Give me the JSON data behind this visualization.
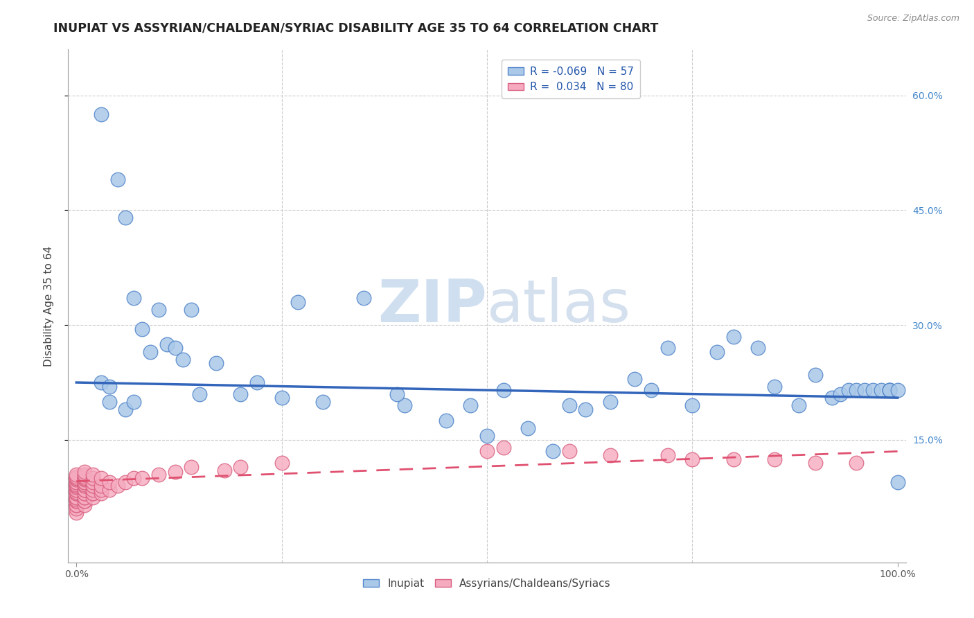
{
  "title": "INUPIAT VS ASSYRIAN/CHALDEAN/SYRIAC DISABILITY AGE 35 TO 64 CORRELATION CHART",
  "source": "Source: ZipAtlas.com",
  "ylabel": "Disability Age 35 to 64",
  "xlim": [
    -0.01,
    1.01
  ],
  "ylim": [
    -0.01,
    0.66
  ],
  "ytick_positions": [
    0.15,
    0.3,
    0.45,
    0.6
  ],
  "ytick_labels": [
    "15.0%",
    "30.0%",
    "45.0%",
    "60.0%"
  ],
  "legend_R1": "-0.069",
  "legend_N1": "57",
  "legend_R2": "0.034",
  "legend_N2": "80",
  "inupiat_color": "#aac8e8",
  "assyrian_color": "#f5aabf",
  "inupiat_edge": "#5588cc",
  "assyrian_edge": "#d96080",
  "trend_blue": "#3366bb",
  "trend_pink": "#e05070",
  "watermark_color": "#d0dff0",
  "title_fontsize": 12.5,
  "axis_label_fontsize": 11,
  "tick_fontsize": 10,
  "inupiat_x": [
    0.03,
    0.05,
    0.06,
    0.07,
    0.08,
    0.09,
    0.1,
    0.11,
    0.12,
    0.13,
    0.14,
    0.15,
    0.17,
    0.2,
    0.22,
    0.25,
    0.27,
    0.3,
    0.35,
    0.4,
    0.45,
    0.48,
    0.5,
    0.52,
    0.55,
    0.58,
    0.6,
    0.62,
    0.65,
    0.68,
    0.7,
    0.72,
    0.75,
    0.78,
    0.8,
    0.83,
    0.85,
    0.88,
    0.9,
    0.92,
    0.93,
    0.94,
    0.95,
    0.96,
    0.97,
    0.98,
    0.99,
    0.99,
    0.99,
    1.0,
    1.0,
    0.03,
    0.04,
    0.04,
    0.06,
    0.07,
    0.39
  ],
  "inupiat_y": [
    0.575,
    0.49,
    0.44,
    0.335,
    0.295,
    0.265,
    0.32,
    0.275,
    0.27,
    0.255,
    0.32,
    0.21,
    0.25,
    0.21,
    0.225,
    0.205,
    0.33,
    0.2,
    0.335,
    0.195,
    0.175,
    0.195,
    0.155,
    0.215,
    0.165,
    0.135,
    0.195,
    0.19,
    0.2,
    0.23,
    0.215,
    0.27,
    0.195,
    0.265,
    0.285,
    0.27,
    0.22,
    0.195,
    0.235,
    0.205,
    0.21,
    0.215,
    0.215,
    0.215,
    0.215,
    0.215,
    0.215,
    0.215,
    0.215,
    0.215,
    0.095,
    0.225,
    0.22,
    0.2,
    0.19,
    0.2,
    0.21
  ],
  "assyrian_x": [
    0.0,
    0.0,
    0.0,
    0.0,
    0.0,
    0.0,
    0.0,
    0.0,
    0.0,
    0.0,
    0.0,
    0.0,
    0.0,
    0.0,
    0.0,
    0.0,
    0.0,
    0.0,
    0.0,
    0.0,
    0.0,
    0.0,
    0.0,
    0.0,
    0.0,
    0.01,
    0.01,
    0.01,
    0.01,
    0.01,
    0.01,
    0.01,
    0.01,
    0.01,
    0.01,
    0.01,
    0.01,
    0.01,
    0.01,
    0.01,
    0.01,
    0.01,
    0.01,
    0.01,
    0.01,
    0.02,
    0.02,
    0.02,
    0.02,
    0.02,
    0.02,
    0.02,
    0.02,
    0.02,
    0.03,
    0.03,
    0.03,
    0.03,
    0.04,
    0.04,
    0.05,
    0.06,
    0.07,
    0.08,
    0.1,
    0.12,
    0.14,
    0.18,
    0.2,
    0.25,
    0.5,
    0.52,
    0.6,
    0.65,
    0.72,
    0.75,
    0.8,
    0.85,
    0.9,
    0.95
  ],
  "assyrian_y": [
    0.055,
    0.06,
    0.065,
    0.065,
    0.07,
    0.07,
    0.072,
    0.075,
    0.075,
    0.08,
    0.08,
    0.082,
    0.085,
    0.085,
    0.088,
    0.09,
    0.09,
    0.092,
    0.095,
    0.095,
    0.098,
    0.1,
    0.1,
    0.102,
    0.105,
    0.065,
    0.07,
    0.07,
    0.075,
    0.075,
    0.08,
    0.08,
    0.085,
    0.085,
    0.09,
    0.09,
    0.092,
    0.095,
    0.095,
    0.098,
    0.1,
    0.1,
    0.102,
    0.105,
    0.108,
    0.075,
    0.08,
    0.08,
    0.085,
    0.09,
    0.09,
    0.095,
    0.1,
    0.105,
    0.08,
    0.085,
    0.09,
    0.1,
    0.085,
    0.095,
    0.09,
    0.095,
    0.1,
    0.1,
    0.105,
    0.108,
    0.115,
    0.11,
    0.115,
    0.12,
    0.135,
    0.14,
    0.135,
    0.13,
    0.13,
    0.125,
    0.125,
    0.125,
    0.12,
    0.12
  ]
}
